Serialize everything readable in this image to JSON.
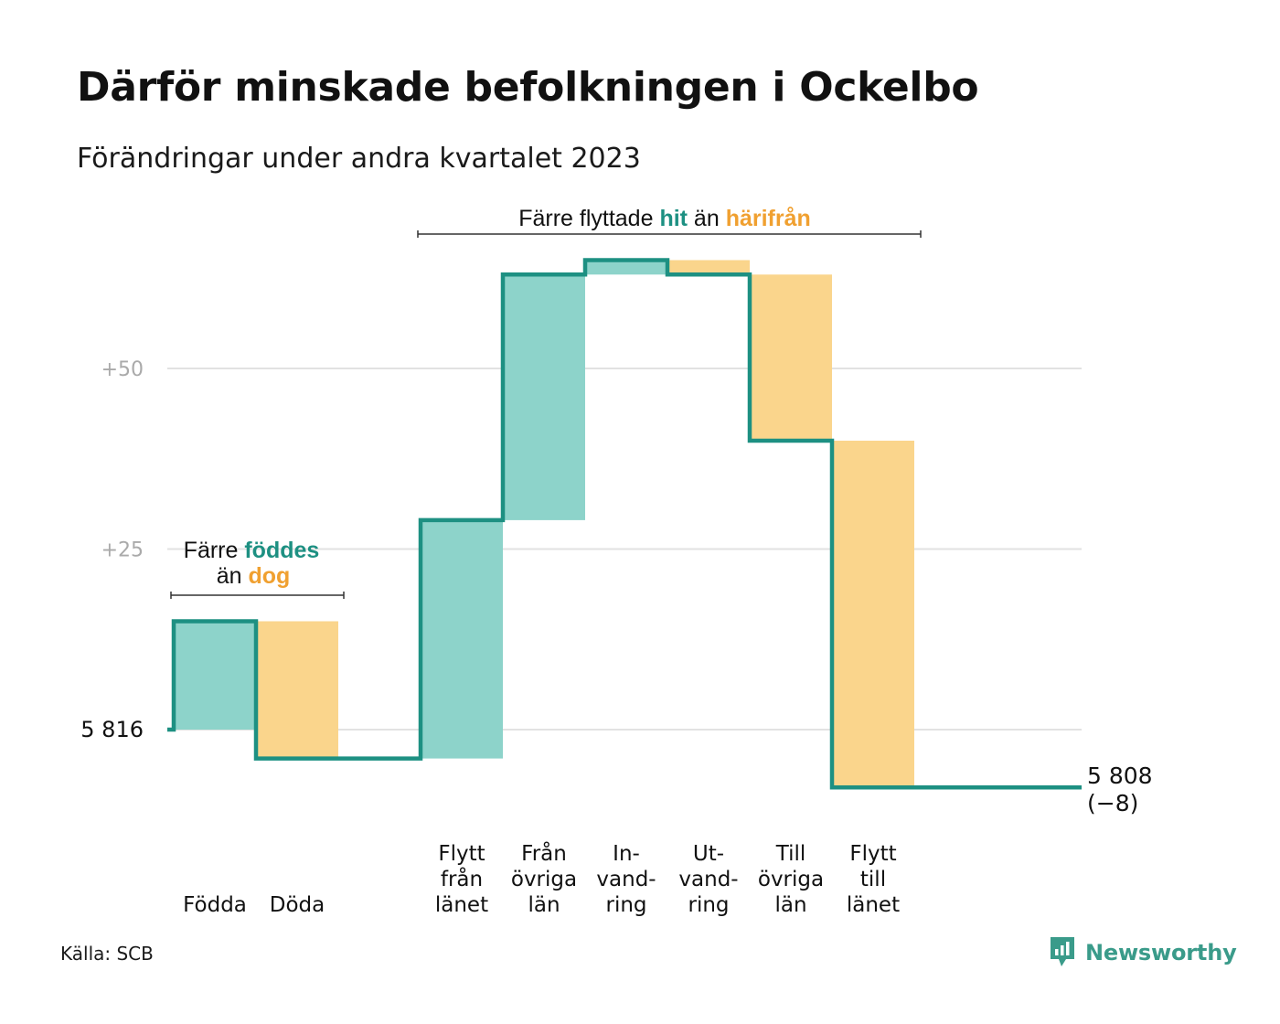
{
  "title": "Därför minskade befolkningen i Ockelbo",
  "subtitle": "Förändringar under andra kvartalet 2023",
  "source": "Källa: SCB",
  "logo": {
    "text": "Newsworthy",
    "icon": "newsworthy-chart-icon"
  },
  "colors": {
    "increase_fill": "#8dd3ca",
    "decrease_fill": "#fad58c",
    "line": "#1d9082",
    "teal_text": "#1d9082",
    "orange_text": "#f0a030",
    "gridline": "#e2e2e2",
    "tick_text": "#aaaaaa"
  },
  "annotations": {
    "births": {
      "pre": "Färre ",
      "hit": "föddes",
      "line2_pre": "än ",
      "away": "dog"
    },
    "moves": {
      "pre": "Färre flyttade ",
      "hit": "hit",
      "mid": " än ",
      "away": "härifrån"
    }
  },
  "chart_data": {
    "type": "waterfall",
    "start_value": 5816,
    "start_label": "5  816",
    "end_value": 5808,
    "end_label_line1": "5 808",
    "end_label_line2": "(−8)",
    "yticks": [
      {
        "value": 50,
        "label": "+50"
      },
      {
        "value": 25,
        "label": "+25"
      }
    ],
    "steps": [
      {
        "label_lines": [
          "Födda"
        ],
        "change": 15
      },
      {
        "label_lines": [
          "Döda"
        ],
        "change": -19
      },
      {
        "label_lines": [],
        "change": 0
      },
      {
        "label_lines": [
          "Flytt",
          "från",
          "länet"
        ],
        "change": 33
      },
      {
        "label_lines": [
          "Från",
          "övriga",
          "län"
        ],
        "change": 34
      },
      {
        "label_lines": [
          "In-",
          "vand-",
          "ring"
        ],
        "change": 2
      },
      {
        "label_lines": [
          "Ut-",
          "vand-",
          "ring"
        ],
        "change": -2
      },
      {
        "label_lines": [
          "Till",
          "övriga",
          "län"
        ],
        "change": -23
      },
      {
        "label_lines": [
          "Flytt",
          "till",
          "länet"
        ],
        "change": -48
      }
    ],
    "grid": true,
    "legend": "none"
  }
}
